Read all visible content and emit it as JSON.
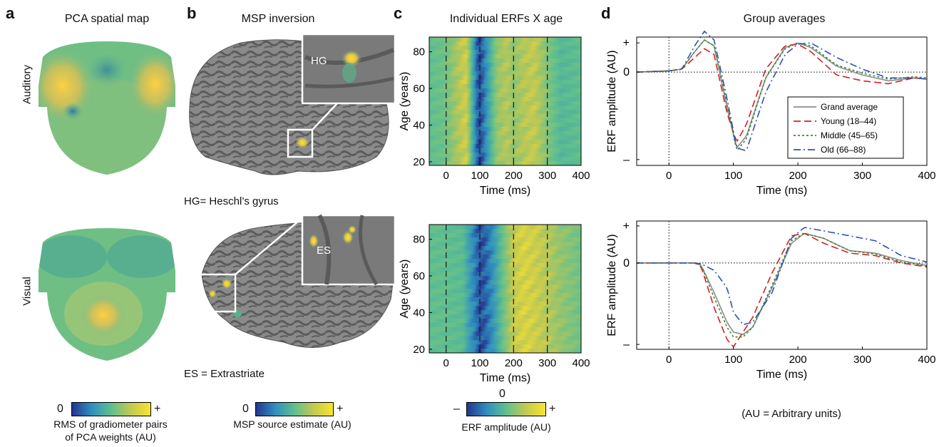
{
  "panels": {
    "a": {
      "letter": "a",
      "title": "PCA spatial map",
      "row_labels": [
        "Auditory",
        "Visual"
      ],
      "colorbar": {
        "min": "0",
        "max": "+",
        "caption": [
          "RMS of gradiometer pairs",
          "of PCA weights (AU)"
        ]
      }
    },
    "b": {
      "letter": "b",
      "title": "MSP inversion",
      "inset1": "HG",
      "inset2": "ES",
      "note1": "HG= Heschl’s gyrus",
      "note2": "ES = Extrastriate",
      "colorbar": {
        "min": "0",
        "max": "+",
        "caption": "MSP source estimate (AU)"
      }
    },
    "c": {
      "letter": "c",
      "title": "Individual ERFs X age",
      "ylabel": "Age (years)",
      "xlabel": "Time (ms)",
      "yticks": [
        "80",
        "60",
        "40",
        "20"
      ],
      "xticks": [
        "0",
        "100",
        "200",
        "300",
        "400"
      ],
      "colorbar": {
        "min": "–",
        "mid": "0",
        "max": "+",
        "caption": "ERF amplitude (AU)"
      }
    },
    "d": {
      "letter": "d",
      "title": "Group averages",
      "ylabel": "ERF amplitude (AU)",
      "xlabel": "Time (ms)",
      "yticks": [
        "+",
        "0",
        "–"
      ],
      "xticks": [
        "0",
        "100",
        "200",
        "300",
        "400"
      ],
      "footnote": "(AU = Arbitrary units)",
      "legend": [
        {
          "name": "Grand average",
          "color": "#8c8c8c",
          "dash": ""
        },
        {
          "name": "Young (18–44)",
          "color": "#d42020",
          "dash": "10,5"
        },
        {
          "name": "Middle (45–65)",
          "color": "#3a8a3a",
          "dash": "3,3"
        },
        {
          "name": "Old (66–88)",
          "color": "#3050b0",
          "dash": "10,4,2,4"
        }
      ]
    }
  },
  "chart_data": [
    {
      "type": "line",
      "panel": "d-top",
      "x": [
        -50,
        0,
        20,
        40,
        55,
        70,
        90,
        105,
        120,
        150,
        180,
        200,
        220,
        260,
        300,
        340,
        380,
        400
      ],
      "series": [
        {
          "name": "Grand average",
          "values": [
            0,
            0.02,
            0.05,
            0.35,
            0.55,
            0.45,
            -0.6,
            -1.3,
            -1.1,
            -0.1,
            0.42,
            0.5,
            0.42,
            0.1,
            -0.05,
            -0.15,
            -0.1,
            -0.12
          ]
        },
        {
          "name": "Young (18–44)",
          "values": [
            0,
            0.02,
            0.05,
            0.25,
            0.4,
            0.3,
            -0.7,
            -1.2,
            -0.9,
            0.05,
            0.45,
            0.48,
            0.35,
            -0.05,
            -0.15,
            -0.2,
            -0.1,
            -0.12
          ]
        },
        {
          "name": "Middle (45–65)",
          "values": [
            0,
            0.02,
            0.05,
            0.35,
            0.55,
            0.45,
            -0.55,
            -1.35,
            -1.15,
            -0.1,
            0.4,
            0.5,
            0.45,
            0.12,
            -0.02,
            -0.12,
            -0.08,
            -0.1
          ]
        },
        {
          "name": "Old (66–88)",
          "values": [
            0,
            0.02,
            0.05,
            0.45,
            0.7,
            0.55,
            -0.45,
            -1.3,
            -1.35,
            -0.35,
            0.3,
            0.48,
            0.5,
            0.25,
            0.05,
            -0.1,
            -0.1,
            -0.12
          ]
        }
      ],
      "xlim": [
        -50,
        400
      ],
      "ylim": [
        -1.6,
        0.6
      ],
      "xlabel": "Time (ms)",
      "ylabel": "ERF amplitude (AU)"
    },
    {
      "type": "line",
      "panel": "d-bottom",
      "x": [
        -50,
        0,
        40,
        50,
        70,
        90,
        100,
        115,
        130,
        160,
        190,
        210,
        240,
        280,
        320,
        360,
        400
      ],
      "series": [
        {
          "name": "Grand average",
          "values": [
            0,
            0,
            0,
            -0.05,
            -0.6,
            -1.2,
            -1.4,
            -1.45,
            -1.3,
            -0.5,
            0.4,
            0.6,
            0.5,
            0.25,
            0.2,
            0.05,
            -0.05
          ]
        },
        {
          "name": "Young (18–44)",
          "values": [
            0,
            0,
            0,
            -0.08,
            -0.9,
            -1.55,
            -1.7,
            -1.4,
            -1.1,
            -0.2,
            0.55,
            0.6,
            0.4,
            0.2,
            0.15,
            0,
            -0.08
          ]
        },
        {
          "name": "Middle (45–65)",
          "values": [
            0,
            0,
            0,
            -0.05,
            -0.7,
            -1.3,
            -1.5,
            -1.5,
            -1.3,
            -0.45,
            0.45,
            0.6,
            0.5,
            0.25,
            0.18,
            0.02,
            -0.06
          ]
        },
        {
          "name": "Old (66–88)",
          "values": [
            0,
            0,
            0,
            -0.02,
            -0.15,
            -0.5,
            -1.0,
            -1.25,
            -1.2,
            -0.6,
            0.5,
            0.72,
            0.65,
            0.55,
            0.45,
            0.15,
            0.02
          ]
        }
      ],
      "xlim": [
        -50,
        400
      ],
      "ylim": [
        -1.75,
        0.85
      ],
      "xlabel": "Time (ms)",
      "ylabel": "ERF amplitude (AU)"
    },
    {
      "type": "heatmap",
      "panel": "c-top",
      "x_range": [
        -50,
        400
      ],
      "y_range": [
        18,
        88
      ],
      "xlabel": "Time (ms)",
      "ylabel": "Age (years)",
      "profile_time": [
        -50,
        0,
        40,
        60,
        80,
        95,
        105,
        120,
        150,
        180,
        200,
        230,
        260,
        300,
        340,
        400
      ],
      "profile_value": [
        0,
        0.1,
        0.5,
        0.7,
        -0.3,
        -1,
        -0.95,
        -0.5,
        0.3,
        0.5,
        0.3,
        0.5,
        0.6,
        0.2,
        -0.1,
        0
      ]
    },
    {
      "type": "heatmap",
      "panel": "c-bottom",
      "x_range": [
        -50,
        400
      ],
      "y_range": [
        18,
        88
      ],
      "xlabel": "Time (ms)",
      "ylabel": "Age (years)",
      "profile_time": [
        -50,
        0,
        50,
        80,
        100,
        115,
        140,
        170,
        200,
        230,
        260,
        300,
        340,
        400
      ],
      "profile_value": [
        0,
        0,
        -0.05,
        -0.6,
        -1,
        -0.9,
        -0.5,
        0.1,
        0.6,
        0.8,
        0.7,
        0.5,
        0.3,
        0.1
      ]
    }
  ]
}
